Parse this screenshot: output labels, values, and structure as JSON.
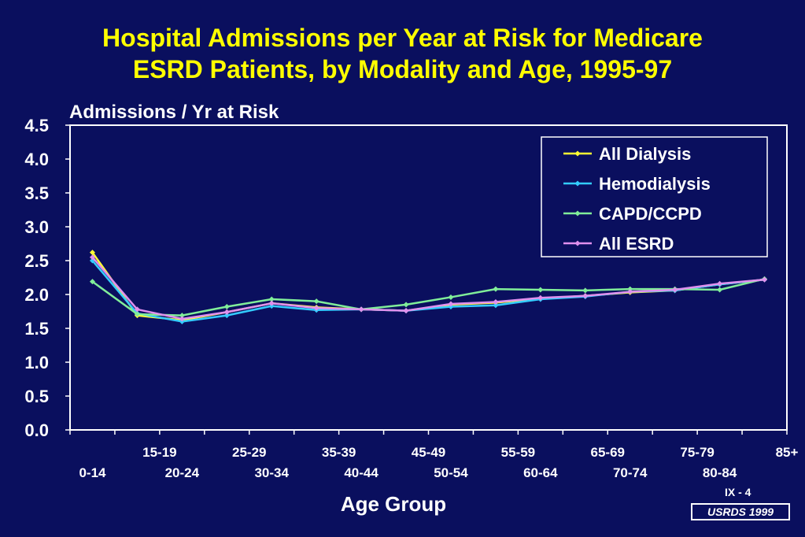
{
  "slide": {
    "title_line1": "Hospital Admissions per Year at Risk for Medicare",
    "title_line2": "ESRD Patients, by Modality and Age, 1995-97",
    "slide_number": "IX - 4",
    "source": "USRDS 1999"
  },
  "chart_data": {
    "type": "line",
    "ylabel": "Admissions / Yr at Risk",
    "xlabel": "Age Group",
    "ylim": [
      0,
      4.5
    ],
    "yticks": [
      "0.0",
      "0.5",
      "1.0",
      "1.5",
      "2.0",
      "2.5",
      "3.0",
      "3.5",
      "4.0",
      "4.5"
    ],
    "categories": [
      "0-14",
      "15-19",
      "20-24",
      "25-29",
      "30-34",
      "35-39",
      "40-44",
      "45-49",
      "50-54",
      "55-59",
      "60-64",
      "65-69",
      "70-74",
      "75-79",
      "80-84",
      "85+"
    ],
    "legend_position": "top-right",
    "grid": false,
    "series": [
      {
        "name": "All Dialysis",
        "color": "#ffff33",
        "values": [
          2.62,
          1.69,
          1.62,
          1.74,
          1.87,
          1.81,
          1.78,
          1.76,
          1.85,
          1.88,
          1.94,
          1.98,
          2.03,
          2.06,
          2.15,
          2.22
        ]
      },
      {
        "name": "Hemodialysis",
        "color": "#33ccff",
        "values": [
          2.5,
          1.72,
          1.6,
          1.69,
          1.83,
          1.77,
          1.78,
          1.76,
          1.82,
          1.84,
          1.93,
          1.97,
          2.04,
          2.06,
          2.15,
          2.22
        ]
      },
      {
        "name": "CAPD/CCPD",
        "color": "#80ee99",
        "values": [
          2.19,
          1.71,
          1.69,
          1.82,
          1.93,
          1.9,
          1.78,
          1.85,
          1.96,
          2.08,
          2.07,
          2.06,
          2.08,
          2.08,
          2.07,
          2.23
        ]
      },
      {
        "name": "All ESRD",
        "color": "#e090ee",
        "values": [
          2.55,
          1.78,
          1.64,
          1.74,
          1.87,
          1.8,
          1.78,
          1.76,
          1.86,
          1.89,
          1.95,
          1.98,
          2.04,
          2.07,
          2.16,
          2.22
        ]
      }
    ]
  }
}
